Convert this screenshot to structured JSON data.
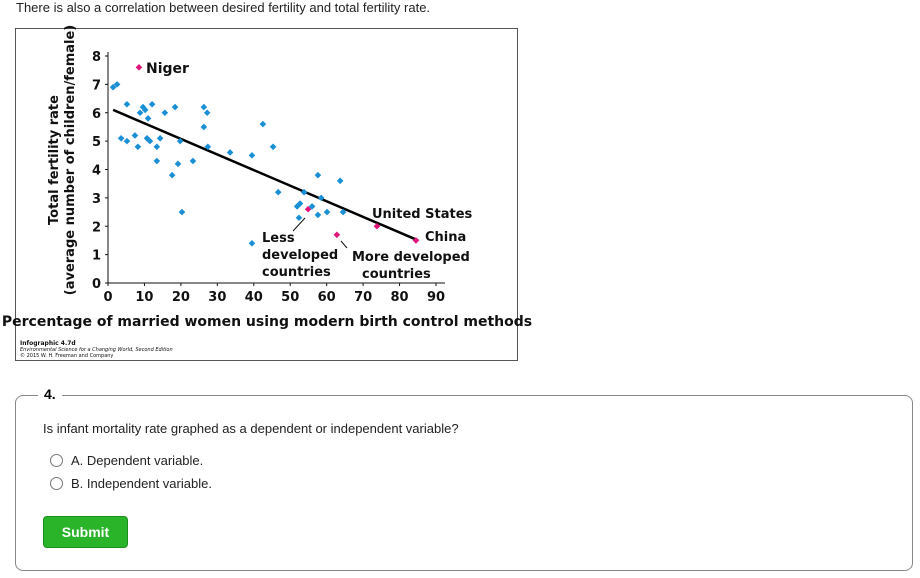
{
  "intro": "There is also a correlation between desired fertility and total fertility rate.",
  "chart_data": {
    "type": "scatter",
    "x_label": "Percentage of married women using modern birth control methods",
    "y_label": [
      "Total fertility rate",
      "(average number of children/female)"
    ],
    "xlim": [
      0,
      90
    ],
    "ylim": [
      0,
      8
    ],
    "xticks": [
      0,
      10,
      20,
      30,
      40,
      50,
      60,
      70,
      80,
      90
    ],
    "yticks": [
      0,
      1,
      2,
      3,
      4,
      5,
      6,
      7,
      8
    ],
    "series": [
      {
        "color": "#1a8fd6",
        "x": [
          1.4,
          2.5,
          5.2,
          9.6,
          12.1,
          10.2,
          11.0,
          8.8,
          15.6,
          18.4,
          26.3,
          27.2,
          26.3,
          27.4,
          33.5,
          39.5,
          42.5,
          45.3,
          3.6,
          5.2,
          7.4,
          8.2,
          10.7,
          11.5,
          13.4,
          14.3,
          13.4,
          17.6,
          19.2,
          23.3,
          20.3,
          39.5,
          46.7,
          52.7,
          53.8,
          51.9,
          52.4,
          56.0,
          57.6,
          58.5,
          57.6,
          60.1,
          63.7,
          64.5,
          19.8
        ],
        "values": [
          6.9,
          7.0,
          6.3,
          6.2,
          6.3,
          6.1,
          5.8,
          6.0,
          6.0,
          6.2,
          6.2,
          6.0,
          5.5,
          4.8,
          4.6,
          4.5,
          5.6,
          4.8,
          5.1,
          5.0,
          5.2,
          4.8,
          5.1,
          5.0,
          4.8,
          5.1,
          4.3,
          3.8,
          4.2,
          4.3,
          2.5,
          1.4,
          3.2,
          2.8,
          3.2,
          2.7,
          2.3,
          2.7,
          3.8,
          3.0,
          2.4,
          2.5,
          3.6,
          2.5,
          5.0
        ]
      },
      {
        "color": "#e0157a",
        "x": [
          8.5,
          54.9,
          62.8,
          73.8,
          84.5
        ],
        "values": [
          7.6,
          2.6,
          1.7,
          2.0,
          1.5
        ]
      }
    ],
    "trend": {
      "color": "#000000",
      "x": [
        1.4,
        85.1
      ],
      "values": [
        6.1,
        1.5
      ]
    },
    "annotations": {
      "niger": "Niger",
      "united_states": "United States",
      "china": "China",
      "less_developed": [
        "Less",
        "developed",
        "countries"
      ],
      "more_developed": [
        "More developed",
        "countries"
      ]
    },
    "credits": [
      "Infographic 4.7d",
      "Environmental Science for a Changing World, Second Edition",
      "© 2015 W. H. Freeman and Company"
    ]
  },
  "question": {
    "number": "4.",
    "text": "Is infant mortality rate graphed as a dependent or independent variable?",
    "options": [
      "A. Dependent variable.",
      "B. Independent variable."
    ],
    "submit": "Submit"
  }
}
